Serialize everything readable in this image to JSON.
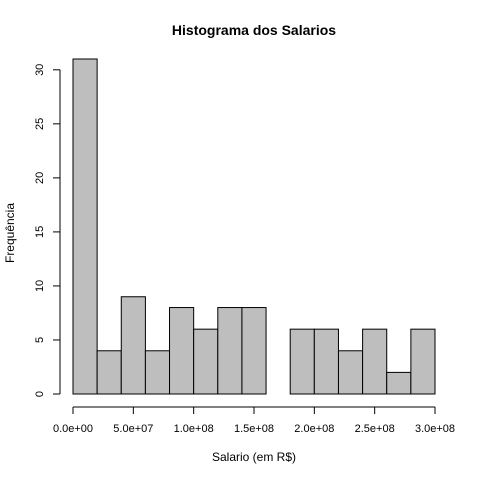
{
  "chart_data": {
    "type": "bar",
    "title": "Histograma dos Salarios",
    "xlabel": "Salario (em R$)",
    "ylabel": "Frequência",
    "bin_edges": [
      0,
      20000000,
      40000000,
      60000000,
      80000000,
      100000000,
      120000000,
      140000000,
      160000000,
      180000000,
      200000000,
      220000000,
      240000000,
      260000000,
      280000000,
      300000000
    ],
    "values": [
      31,
      4,
      9,
      4,
      8,
      6,
      8,
      8,
      0,
      6,
      6,
      4,
      6,
      2,
      6
    ],
    "xlim": [
      0,
      300000000
    ],
    "ylim": [
      0,
      31
    ],
    "x_ticks": [
      {
        "value": 0,
        "label": "0.0e+00"
      },
      {
        "value": 50000000,
        "label": "5.0e+07"
      },
      {
        "value": 100000000,
        "label": "1.0e+08"
      },
      {
        "value": 150000000,
        "label": "1.5e+08"
      },
      {
        "value": 200000000,
        "label": "2.0e+08"
      },
      {
        "value": 250000000,
        "label": "2.5e+08"
      },
      {
        "value": 300000000,
        "label": "3.0e+08"
      }
    ],
    "y_ticks": [
      {
        "value": 0,
        "label": "0"
      },
      {
        "value": 5,
        "label": "5"
      },
      {
        "value": 10,
        "label": "10"
      },
      {
        "value": 15,
        "label": "15"
      },
      {
        "value": 20,
        "label": "20"
      },
      {
        "value": 25,
        "label": "25"
      },
      {
        "value": 30,
        "label": "30"
      }
    ],
    "grid": false,
    "legend": "none",
    "bar_fill": "#bebebe",
    "bar_stroke": "#000000"
  }
}
